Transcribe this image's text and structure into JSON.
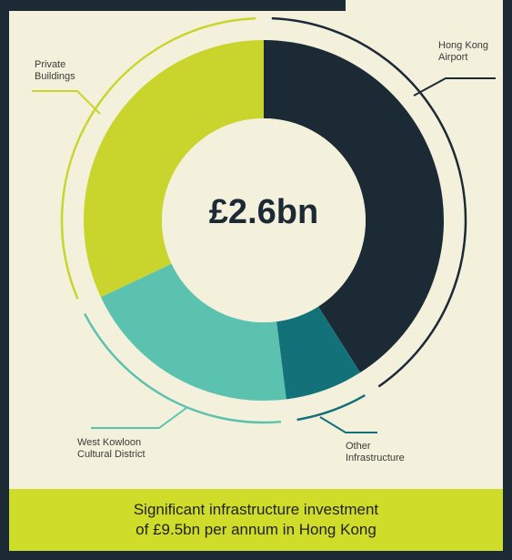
{
  "chart_data": {
    "type": "donut",
    "center_label": "£2.6bn",
    "categories": [
      "Hong Kong\nAirport",
      "Other\nInfrastructure",
      "West Kowloon\nCultural District",
      "Private\nBuildings"
    ],
    "values": [
      41,
      7,
      20,
      32
    ],
    "colors": [
      "#1c2a36",
      "#13717a",
      "#5cc2b0",
      "#c9d52c"
    ],
    "caption": "Significant infrastructure investment\nof £9.5bn per annum in Hong Kong"
  }
}
